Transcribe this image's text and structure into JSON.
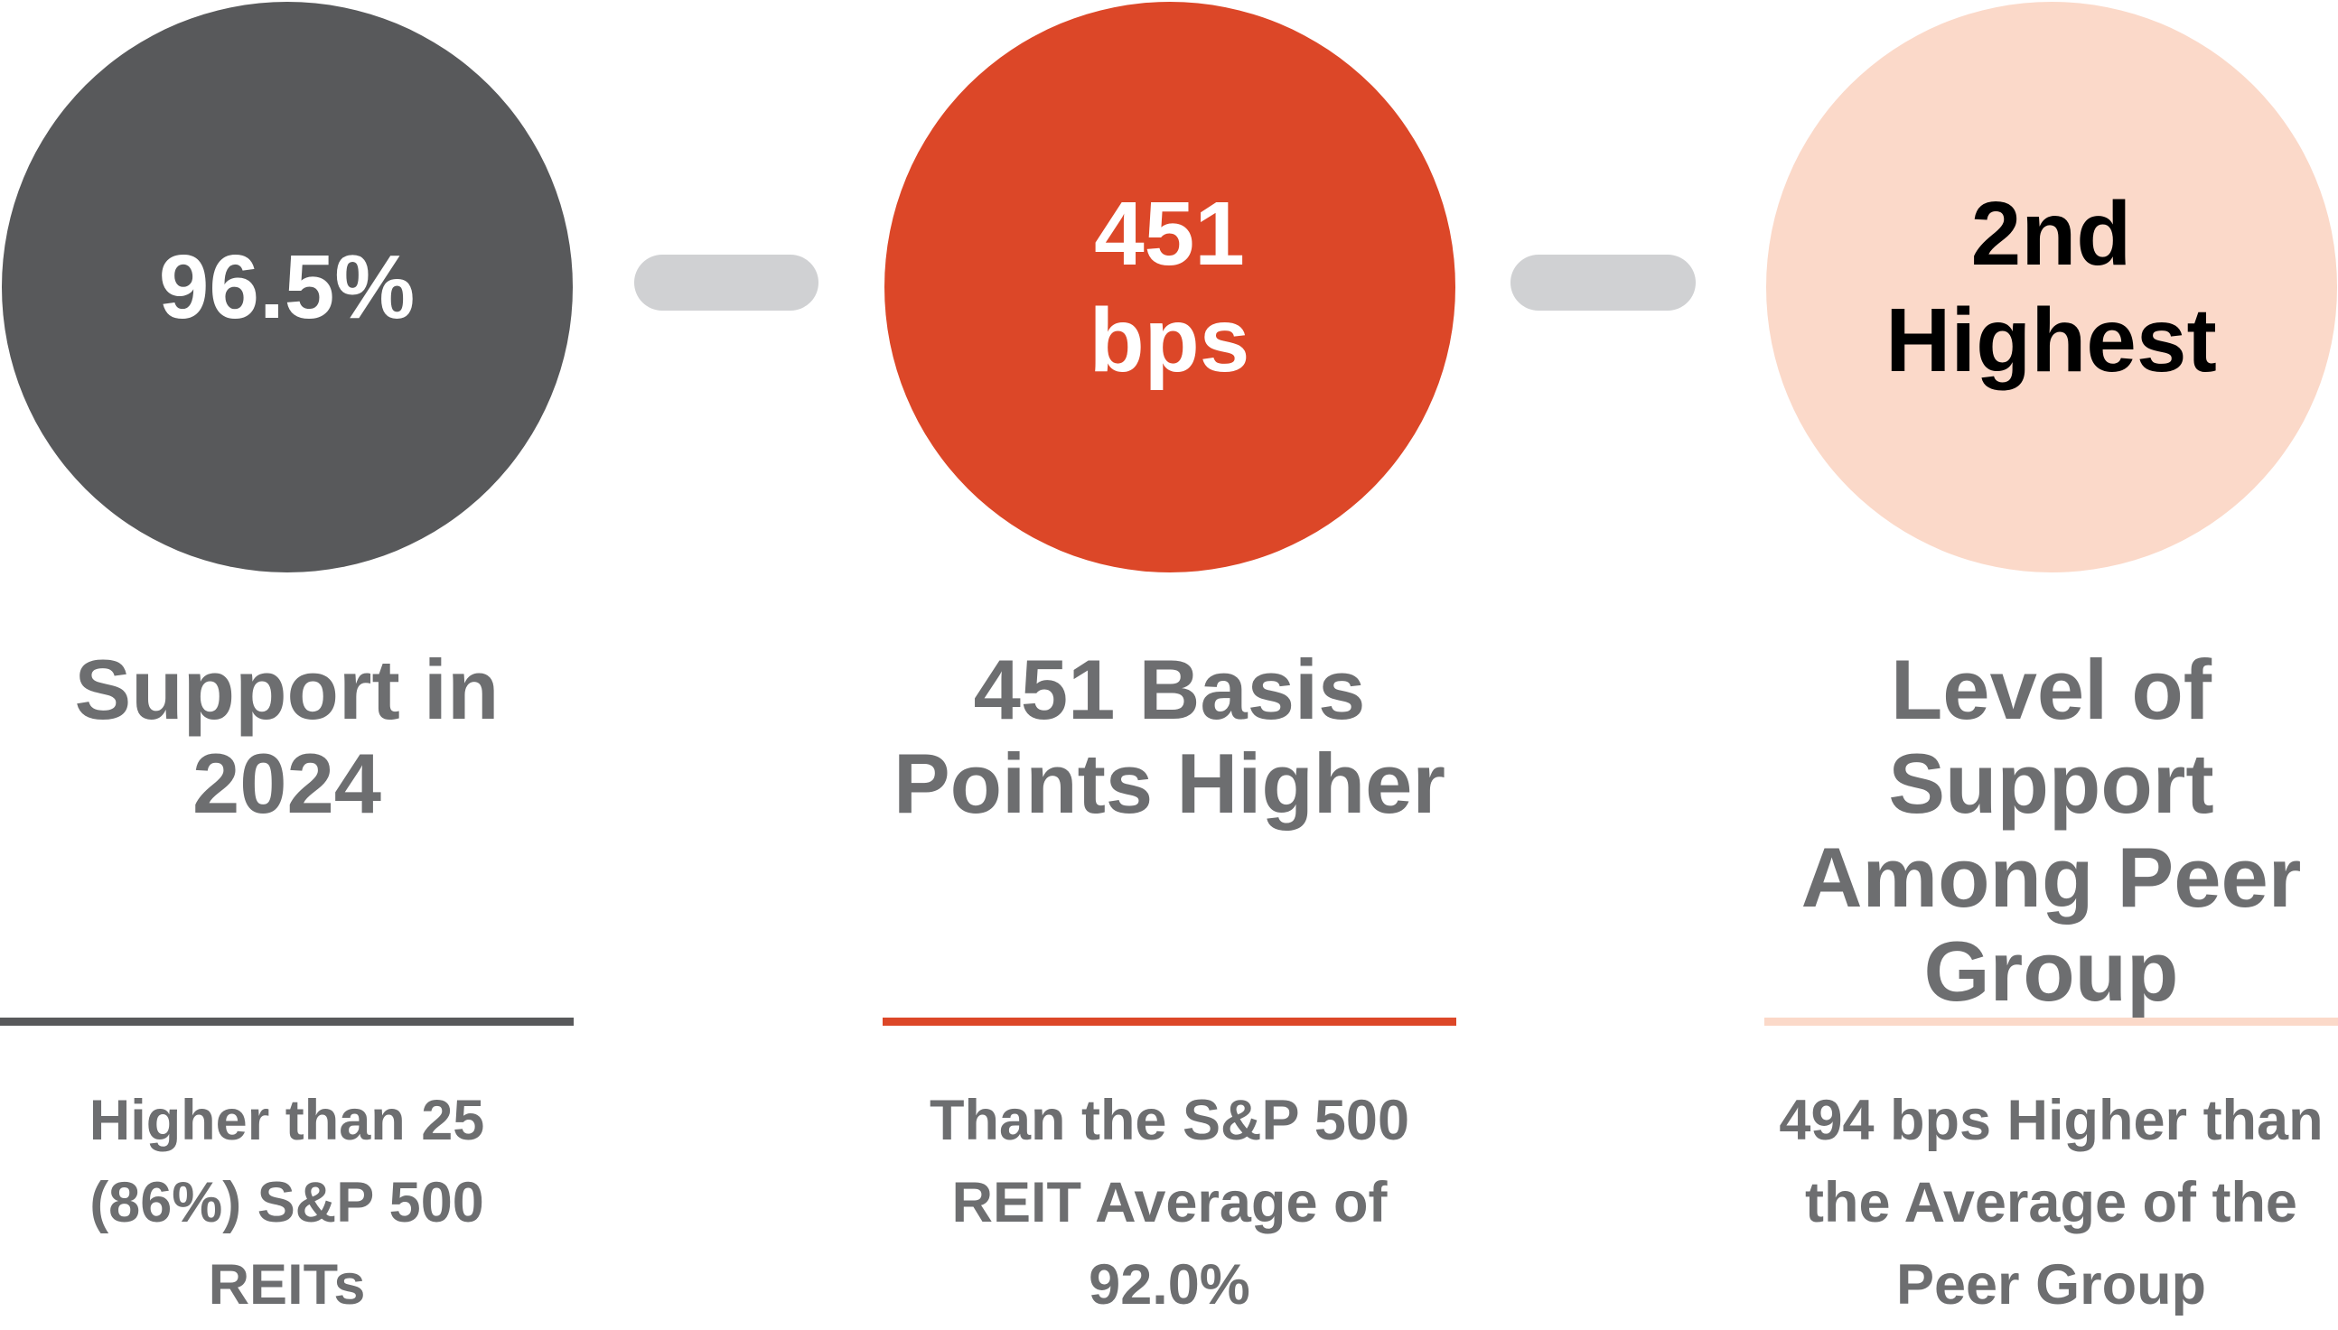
{
  "title": "Say-on-pay support infographic",
  "colors": {
    "dark_gray": "#58595B",
    "orange": "#DC4728",
    "light_pink": "#FBD9C9",
    "connector_gray": "#D0D1D3",
    "text_gray": "#6D6E70",
    "white": "#FFFFFF",
    "black": "#000000"
  },
  "columns": [
    {
      "circle_value": "96.5%",
      "circle_color": "#58595B",
      "circle_text_color": "#FFFFFF",
      "heading": "Support in\n2024",
      "rule_color": "#58595B",
      "description": "Higher than 25\n(86%) S&P 500\nREITs"
    },
    {
      "circle_value": "451\nbps",
      "circle_color": "#DC4728",
      "circle_text_color": "#FFFFFF",
      "heading": "451 Basis\nPoints Higher",
      "rule_color": "#DC4728",
      "description": "Than the S&P 500\nREIT Average of\n92.0%"
    },
    {
      "circle_value": "2nd\nHighest",
      "circle_color": "#FBD9C9",
      "circle_text_color": "#000000",
      "heading": "Level of\nSupport\nAmong Peer\nGroup",
      "rule_color": "#FBD9C9",
      "description": "494 bps Higher than\nthe Average of the\nPeer Group"
    }
  ],
  "connectors": [
    {
      "name": "connector-dash-1",
      "color": "#D0D1D3"
    },
    {
      "name": "connector-dash-2",
      "color": "#D0D1D3"
    }
  ]
}
